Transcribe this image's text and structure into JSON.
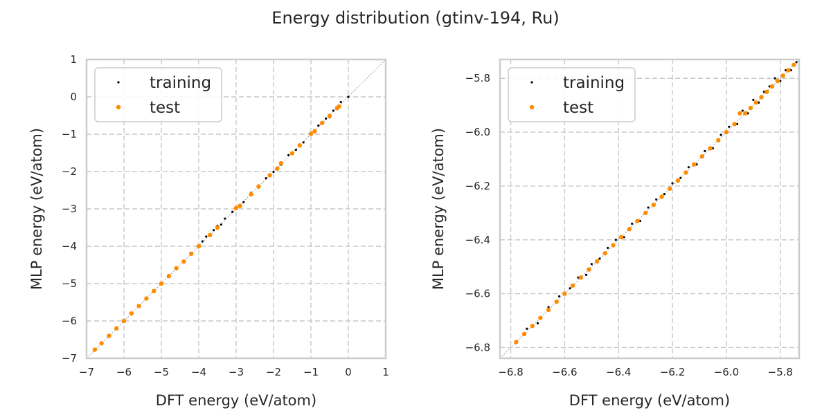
{
  "figure": {
    "title": "Energy distribution (gtinv-194, Ru)"
  },
  "colors": {
    "training": "#000000",
    "test": "#ff8c00",
    "grid": "#c8c8c8",
    "frame": "#cccccc",
    "diagonal": "#a0a0a0"
  },
  "chart_data": [
    {
      "type": "scatter",
      "title": "",
      "xlabel": "DFT energy (eV/atom)",
      "ylabel": "MLP energy (eV/atom)",
      "xlim": [
        -7,
        1
      ],
      "ylim": [
        -7,
        1
      ],
      "xticks": [
        -7,
        -6,
        -5,
        -4,
        -3,
        -2,
        -1,
        0,
        1
      ],
      "yticks": [
        -7,
        -6,
        -5,
        -4,
        -3,
        -2,
        -1,
        0,
        1
      ],
      "xtick_labels": [
        "−7",
        "−6",
        "−5",
        "−4",
        "−3",
        "−2",
        "−1",
        "0",
        "1"
      ],
      "ytick_labels": [
        "−7",
        "−6",
        "−5",
        "−4",
        "−3",
        "−2",
        "−1",
        "0",
        "1"
      ],
      "grid": true,
      "legend": "upper-left",
      "reference_line": "y = x",
      "series": [
        {
          "name": "training",
          "x": [
            -6.78,
            -6.6,
            -6.4,
            -6.2,
            -6.0,
            -5.8,
            -5.6,
            -5.4,
            -5.2,
            -5.0,
            -4.8,
            -4.6,
            -4.4,
            -4.2,
            -4.0,
            -3.9,
            -3.8,
            -3.7,
            -3.6,
            -3.5,
            -3.4,
            -3.3,
            -3.1,
            -3.0,
            -2.8,
            -2.6,
            -2.4,
            -2.2,
            -2.0,
            -1.8,
            -1.6,
            -1.4,
            -1.2,
            -1.0,
            -0.9,
            -0.8,
            -0.6,
            -0.5,
            -0.4,
            -0.3,
            -0.2,
            0.0
          ],
          "y": [
            -6.77,
            -6.61,
            -6.39,
            -6.21,
            -6.0,
            -5.79,
            -5.61,
            -5.4,
            -5.21,
            -5.0,
            -4.79,
            -4.62,
            -4.39,
            -4.2,
            -4.03,
            -3.87,
            -3.74,
            -3.72,
            -3.57,
            -3.45,
            -3.42,
            -3.26,
            -3.08,
            -2.97,
            -2.82,
            -2.57,
            -2.43,
            -2.18,
            -2.01,
            -1.82,
            -1.56,
            -1.42,
            -1.22,
            -0.96,
            -0.92,
            -0.77,
            -0.58,
            -0.55,
            -0.37,
            -0.33,
            -0.14,
            0.0
          ]
        },
        {
          "name": "test",
          "x": [
            -6.78,
            -6.6,
            -6.4,
            -6.2,
            -6.0,
            -5.8,
            -5.6,
            -5.4,
            -5.2,
            -5.0,
            -4.8,
            -4.6,
            -4.4,
            -4.2,
            -4.0,
            -3.7,
            -3.5,
            -3.0,
            -2.9,
            -2.6,
            -2.4,
            -2.1,
            -1.9,
            -1.8,
            -1.5,
            -1.3,
            -1.0,
            -0.9,
            -0.7,
            -0.5,
            -0.3,
            -0.25
          ],
          "y": [
            -6.77,
            -6.6,
            -6.4,
            -6.2,
            -6.0,
            -5.8,
            -5.6,
            -5.4,
            -5.2,
            -5.0,
            -4.8,
            -4.59,
            -4.41,
            -4.2,
            -4.0,
            -3.7,
            -3.5,
            -2.98,
            -2.92,
            -2.61,
            -2.4,
            -2.1,
            -1.92,
            -1.78,
            -1.51,
            -1.3,
            -0.99,
            -0.92,
            -0.7,
            -0.51,
            -0.3,
            -0.26
          ]
        }
      ]
    },
    {
      "type": "scatter",
      "title": "",
      "xlabel": "DFT energy (eV/atom)",
      "ylabel": "MLP energy (eV/atom)",
      "xlim": [
        -6.84,
        -5.73
      ],
      "ylim": [
        -6.84,
        -5.73
      ],
      "xticks": [
        -6.8,
        -6.6,
        -6.4,
        -6.2,
        -6.0,
        -5.8
      ],
      "yticks": [
        -6.8,
        -6.6,
        -6.4,
        -6.2,
        -6.0,
        -5.8
      ],
      "xtick_labels": [
        "−6.8",
        "−6.6",
        "−6.4",
        "−6.2",
        "−6.0",
        "−5.8"
      ],
      "ytick_labels": [
        "−6.8",
        "−6.6",
        "−6.4",
        "−6.2",
        "−6.0",
        "−5.8"
      ],
      "grid": true,
      "legend": "upper-left",
      "reference_line": "y = x",
      "series": [
        {
          "name": "training",
          "x": [
            -6.78,
            -6.74,
            -6.7,
            -6.66,
            -6.62,
            -6.58,
            -6.55,
            -6.52,
            -6.5,
            -6.47,
            -6.44,
            -6.41,
            -6.38,
            -6.35,
            -6.32,
            -6.29,
            -6.26,
            -6.23,
            -6.2,
            -6.17,
            -6.14,
            -6.11,
            -6.08,
            -6.05,
            -6.02,
            -5.99,
            -5.96,
            -5.94,
            -5.92,
            -5.9,
            -5.88,
            -5.86,
            -5.84,
            -5.82,
            -5.8,
            -5.78,
            -5.76,
            -5.74
          ],
          "y": [
            -6.78,
            -6.73,
            -6.71,
            -6.65,
            -6.61,
            -6.58,
            -6.54,
            -6.53,
            -6.49,
            -6.47,
            -6.43,
            -6.4,
            -6.39,
            -6.34,
            -6.33,
            -6.28,
            -6.25,
            -6.23,
            -6.19,
            -6.17,
            -6.13,
            -6.12,
            -6.07,
            -6.06,
            -6.01,
            -5.98,
            -5.97,
            -5.92,
            -5.93,
            -5.88,
            -5.89,
            -5.85,
            -5.83,
            -5.8,
            -5.81,
            -5.77,
            -5.77,
            -5.74
          ]
        },
        {
          "name": "test",
          "x": [
            -6.78,
            -6.75,
            -6.72,
            -6.69,
            -6.66,
            -6.63,
            -6.6,
            -6.57,
            -6.54,
            -6.51,
            -6.48,
            -6.45,
            -6.42,
            -6.39,
            -6.36,
            -6.33,
            -6.3,
            -6.27,
            -6.24,
            -6.21,
            -6.18,
            -6.15,
            -6.12,
            -6.09,
            -6.06,
            -6.03,
            -6.0,
            -5.97,
            -5.95,
            -5.93,
            -5.91,
            -5.89,
            -5.87,
            -5.85,
            -5.83,
            -5.81,
            -5.79,
            -5.77,
            -5.75
          ],
          "y": [
            -6.78,
            -6.75,
            -6.72,
            -6.69,
            -6.66,
            -6.63,
            -6.6,
            -6.57,
            -6.54,
            -6.51,
            -6.48,
            -6.45,
            -6.42,
            -6.39,
            -6.36,
            -6.33,
            -6.3,
            -6.27,
            -6.24,
            -6.21,
            -6.18,
            -6.15,
            -6.12,
            -6.09,
            -6.06,
            -6.03,
            -6.0,
            -5.97,
            -5.93,
            -5.93,
            -5.91,
            -5.89,
            -5.87,
            -5.85,
            -5.83,
            -5.81,
            -5.79,
            -5.77,
            -5.75
          ]
        }
      ]
    }
  ]
}
